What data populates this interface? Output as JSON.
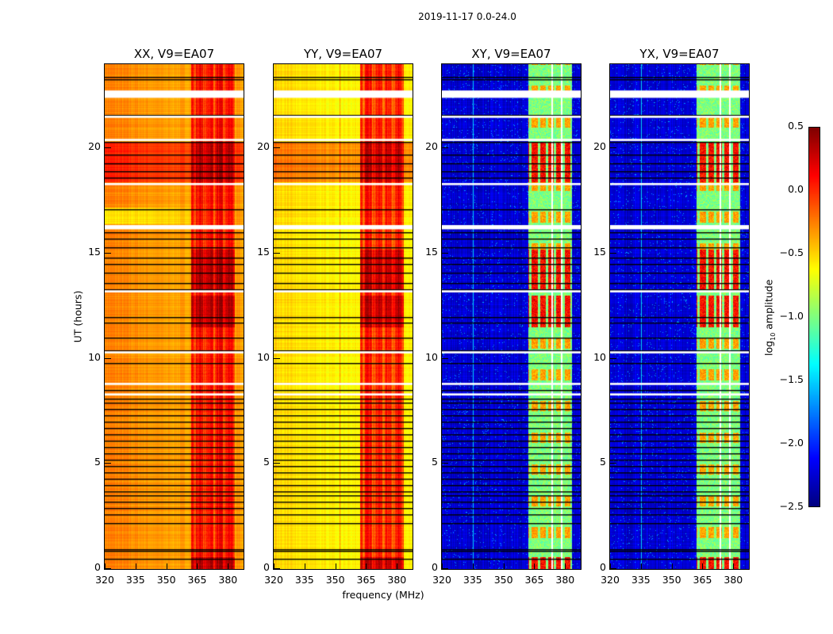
{
  "chart_data": {
    "type": "heatmap",
    "title": "2019-11-17 0.0-24.0",
    "xlabel": "frequency (MHz)",
    "ylabel": "UT (hours)",
    "xlim": [
      320,
      387.6
    ],
    "ylim": [
      0,
      24
    ],
    "xticks": [
      320,
      335,
      350,
      365,
      380
    ],
    "yticks": [
      0,
      5,
      10,
      15,
      20
    ],
    "colorbar": {
      "label_pre": "log",
      "label_sub": "10",
      "label_post": " amplitude",
      "range": [
        -2.5,
        0.5
      ],
      "ticks": [
        "0.5",
        "0.0",
        "−0.5",
        "−1.0",
        "−1.5",
        "−2.0",
        "−2.5"
      ],
      "colormap": "jet"
    },
    "panels": [
      {
        "title": "XX, V9=EA07",
        "pol": "parallel",
        "base": -0.35,
        "band_level": 0.05
      },
      {
        "title": "YY, V9=EA07",
        "pol": "parallel",
        "base": -0.6,
        "band_level": 0.0
      },
      {
        "title": "XY, V9=EA07",
        "pol": "cross",
        "base": -2.25,
        "band_level": -1.0
      },
      {
        "title": "YX, V9=EA07",
        "pol": "cross",
        "base": -2.25,
        "band_level": -1.0
      }
    ],
    "signal_band_mhz": [
      362,
      383
    ],
    "flagged_hours": [
      [
        22.4,
        22.75
      ],
      [
        21.45,
        21.55
      ],
      [
        20.35,
        20.45
      ],
      [
        18.25,
        18.35
      ],
      [
        16.15,
        16.35
      ],
      [
        13.15,
        13.25
      ],
      [
        10.25,
        10.35
      ],
      [
        8.75,
        8.85
      ],
      [
        8.25,
        8.35
      ]
    ],
    "boundary_hours": [
      23.4,
      23.3,
      21.6,
      20.3,
      19.7,
      19.3,
      18.9,
      18.6,
      17.1,
      16.0,
      15.7,
      15.3,
      14.8,
      14.5,
      14.1,
      13.6,
      13.3,
      12.0,
      11.7,
      11.0,
      10.4,
      9.8,
      8.5,
      8.1,
      7.9,
      7.6,
      7.3,
      7.0,
      6.7,
      6.4,
      6.1,
      5.8,
      5.5,
      5.2,
      4.9,
      4.6,
      4.3,
      4.0,
      3.7,
      3.5,
      3.2,
      2.9,
      2.6,
      2.2,
      0.95,
      0.85,
      0.5
    ]
  }
}
